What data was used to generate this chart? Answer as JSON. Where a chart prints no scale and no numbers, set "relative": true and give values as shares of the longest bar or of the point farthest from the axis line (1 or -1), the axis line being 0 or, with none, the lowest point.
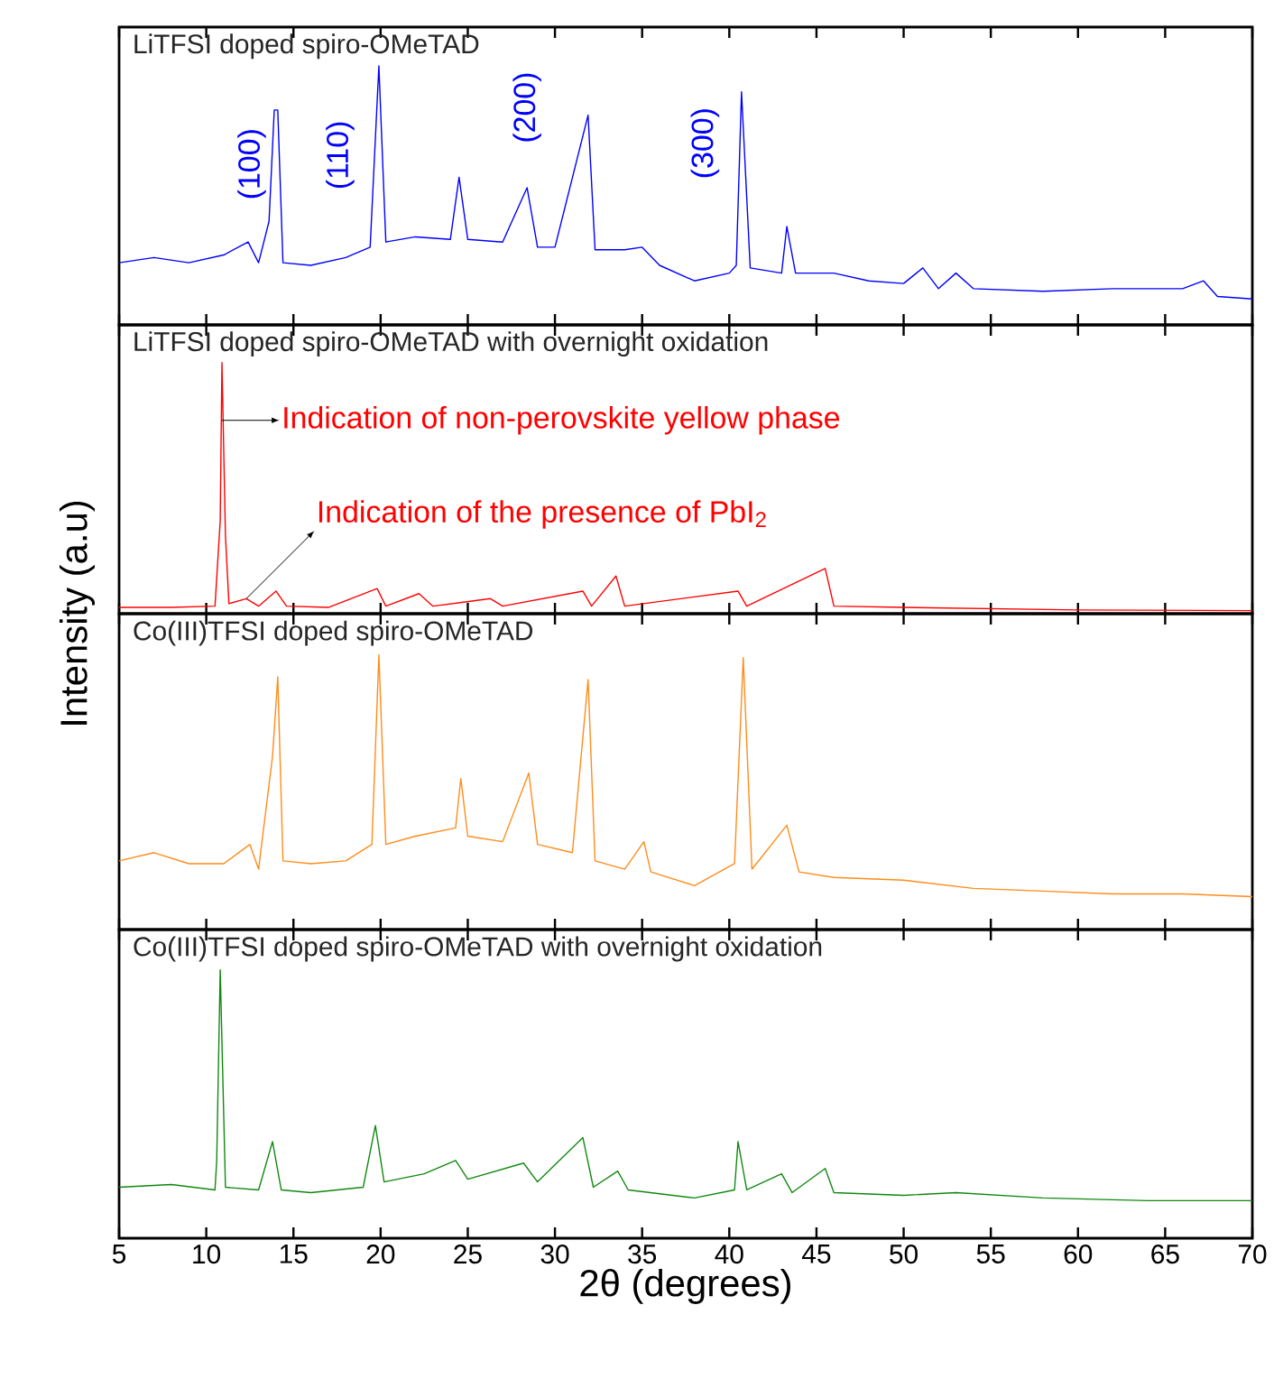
{
  "chart_data": [
    {
      "type": "line",
      "relative": true,
      "title": "LiTFSI doped spiro-OMeTAD",
      "xlim": [
        5,
        70
      ],
      "xticks": [
        5,
        10,
        15,
        20,
        25,
        30,
        35,
        40,
        45,
        50,
        55,
        60,
        65,
        70
      ],
      "tick_labels": false,
      "series": [
        {
          "color": "#0000ff",
          "x": [
            5,
            7,
            9,
            11,
            12.4,
            13,
            13.6,
            13.9,
            14.1,
            14.4,
            16,
            18,
            19.4,
            19.9,
            20.3,
            22,
            24,
            24.5,
            25,
            27,
            28.4,
            29,
            30,
            31.9,
            32.3,
            34,
            35,
            36,
            38,
            40,
            40.4,
            40.7,
            41.2,
            43,
            43.3,
            43.8,
            46,
            48,
            50,
            51.1,
            52,
            53,
            54,
            58,
            62,
            66,
            67.2,
            68,
            70
          ],
          "values": [
            0.24,
            0.26,
            0.24,
            0.27,
            0.32,
            0.24,
            0.4,
            0.83,
            0.83,
            0.24,
            0.23,
            0.26,
            0.3,
            1.0,
            0.32,
            0.34,
            0.33,
            0.57,
            0.33,
            0.32,
            0.53,
            0.3,
            0.3,
            0.81,
            0.29,
            0.29,
            0.3,
            0.23,
            0.17,
            0.2,
            0.23,
            0.9,
            0.22,
            0.2,
            0.38,
            0.2,
            0.2,
            0.17,
            0.16,
            0.22,
            0.14,
            0.2,
            0.14,
            0.13,
            0.14,
            0.14,
            0.17,
            0.11,
            0.1
          ]
        }
      ],
      "annotations": [
        "(100)",
        "(110)",
        "(200)",
        "(300)"
      ]
    },
    {
      "type": "line",
      "relative": true,
      "title": "LiTFSI doped spiro-OMeTAD with overnight oxidation",
      "xlim": [
        5,
        70
      ],
      "xticks": [
        5,
        10,
        15,
        20,
        25,
        30,
        35,
        40,
        45,
        50,
        55,
        60,
        65,
        70
      ],
      "tick_labels": false,
      "ylabel": "Intensity (a.u)",
      "series": [
        {
          "color": "#ff0000",
          "x": [
            5,
            8,
            10.5,
            10.8,
            10.9,
            11.1,
            11.3,
            12.3,
            13,
            14.0,
            14.6,
            17,
            19.8,
            20.3,
            22.2,
            23,
            26.3,
            27,
            31.6,
            32.1,
            33.5,
            34,
            40.5,
            41,
            45.5,
            46,
            50,
            60,
            70
          ],
          "values": [
            0.025,
            0.025,
            0.03,
            0.37,
            1.0,
            0.31,
            0.04,
            0.06,
            0.03,
            0.09,
            0.03,
            0.025,
            0.1,
            0.03,
            0.08,
            0.03,
            0.06,
            0.03,
            0.09,
            0.03,
            0.15,
            0.03,
            0.09,
            0.03,
            0.18,
            0.03,
            0.025,
            0.015,
            0.012
          ]
        }
      ],
      "annotations": [
        {
          "text": "Indication of non-perovskite yellow phase",
          "x": 10.9,
          "y": 0.77
        },
        {
          "text": "Indication of the presence of PbI$_{2}$",
          "x": 12.3,
          "y": 0.06
        }
      ]
    },
    {
      "type": "line",
      "relative": true,
      "title": "Co(III)TFSI doped spiro-OMeTAD",
      "xlim": [
        5,
        70
      ],
      "xticks": [
        5,
        10,
        15,
        20,
        25,
        30,
        35,
        40,
        45,
        50,
        55,
        60,
        65,
        70
      ],
      "tick_labels": false,
      "series": [
        {
          "color": "#ff8c1a",
          "x": [
            5,
            7,
            9,
            11,
            12.5,
            13,
            13.8,
            14.1,
            14.4,
            16,
            18,
            19.5,
            19.9,
            20.3,
            22,
            24.3,
            24.6,
            25,
            27,
            28.5,
            29,
            31,
            31.9,
            32.3,
            34,
            35.1,
            35.5,
            38,
            40.3,
            40.8,
            41.3,
            43.3,
            44,
            46,
            50,
            54,
            58,
            62,
            66,
            70
          ],
          "values": [
            0.25,
            0.28,
            0.24,
            0.24,
            0.31,
            0.22,
            0.63,
            0.92,
            0.25,
            0.24,
            0.25,
            0.31,
            1.0,
            0.31,
            0.34,
            0.37,
            0.55,
            0.34,
            0.32,
            0.57,
            0.31,
            0.28,
            0.91,
            0.25,
            0.22,
            0.32,
            0.21,
            0.16,
            0.24,
            0.99,
            0.22,
            0.38,
            0.21,
            0.19,
            0.18,
            0.15,
            0.14,
            0.13,
            0.13,
            0.12
          ]
        }
      ]
    },
    {
      "type": "line",
      "relative": true,
      "title": "Co(III)TFSI doped spiro-OMeTAD with overnight oxidation",
      "xlim": [
        5,
        70
      ],
      "xticks": [
        5,
        10,
        15,
        20,
        25,
        30,
        35,
        40,
        45,
        50,
        55,
        60,
        65,
        70
      ],
      "tick_labels": "x",
      "xlabel": "2θ (degrees)",
      "series": [
        {
          "color": "#118811",
          "x": [
            5,
            8,
            10.5,
            10.6,
            10.8,
            11.1,
            13,
            13.8,
            14.3,
            16,
            19,
            19.7,
            20.2,
            22.5,
            24.3,
            25,
            28.2,
            29,
            31.6,
            32.2,
            33.6,
            34.2,
            38,
            40.3,
            40.5,
            41,
            43.0,
            43.6,
            45.5,
            46,
            50,
            53,
            58,
            64,
            70
          ],
          "values": [
            0.19,
            0.2,
            0.18,
            0.29,
            1.0,
            0.19,
            0.18,
            0.36,
            0.18,
            0.17,
            0.19,
            0.42,
            0.21,
            0.24,
            0.29,
            0.22,
            0.28,
            0.21,
            0.375,
            0.19,
            0.25,
            0.18,
            0.15,
            0.18,
            0.36,
            0.18,
            0.24,
            0.17,
            0.26,
            0.17,
            0.16,
            0.17,
            0.15,
            0.14,
            0.14
          ]
        }
      ]
    }
  ]
}
